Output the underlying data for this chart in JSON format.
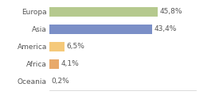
{
  "categories": [
    "Europa",
    "Asia",
    "America",
    "Africa",
    "Oceania"
  ],
  "values": [
    45.8,
    43.4,
    6.5,
    4.1,
    0.2
  ],
  "labels": [
    "45,8%",
    "43,4%",
    "6,5%",
    "4,1%",
    "0,2%"
  ],
  "bar_colors": [
    "#b5c98e",
    "#7b8fc7",
    "#f5c97a",
    "#e8a96a",
    "#cccccc"
  ],
  "background_color": "#ffffff",
  "text_color": "#555555",
  "label_fontsize": 6.5,
  "tick_fontsize": 6.5,
  "xlim": 62,
  "bar_height": 0.55
}
